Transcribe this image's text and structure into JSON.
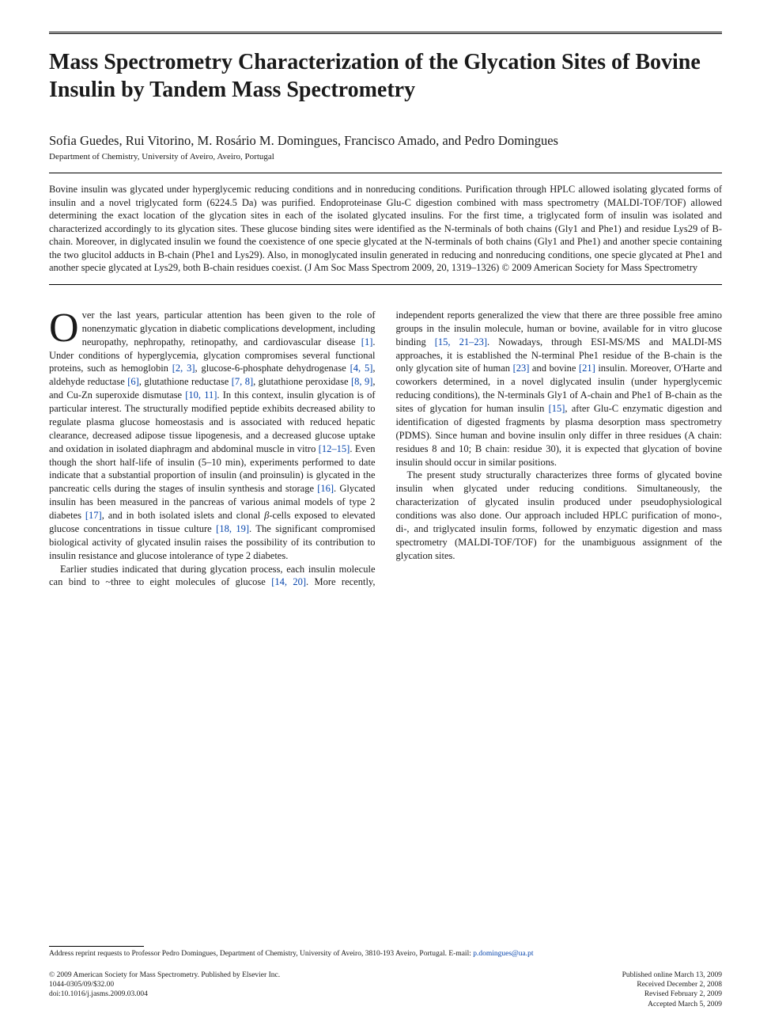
{
  "title": "Mass Spectrometry Characterization of the Glycation Sites of Bovine Insulin by Tandem Mass Spectrometry",
  "authors": "Sofia Guedes, Rui Vitorino, M. Rosário M. Domingues, Francisco Amado, and Pedro Domingues",
  "affiliation": "Department of Chemistry, University of Aveiro, Aveiro, Portugal",
  "abstract": "Bovine insulin was glycated under hyperglycemic reducing conditions and in nonreducing conditions. Purification through HPLC allowed isolating glycated forms of insulin and a novel triglycated form (6224.5 Da) was purified. Endoproteinase Glu-C digestion combined with mass spectrometry (MALDI-TOF/TOF) allowed determining the exact location of the glycation sites in each of the isolated glycated insulins. For the first time, a triglycated form of insulin was isolated and characterized accordingly to its glycation sites. These glucose binding sites were identified as the N-terminals of both chains (Gly1 and Phe1) and residue Lys29 of B-chain. Moreover, in diglycated insulin we found the coexistence of one specie glycated at the N-terminals of both chains (Gly1 and Phe1) and another specie containing the two glucitol adducts in B-chain (Phe1 and Lys29). Also, in monoglycated insulin generated in reducing and nonreducing conditions, one specie glycated at Phe1 and another specie glycated at Lys29, both B-chain residues coexist.   (J Am Soc Mass Spectrom 2009, 20, 1319–1326) © 2009 American Society for Mass Spectrometry",
  "body": {
    "p1_drop": "O",
    "p1": "ver the last years, particular attention has been given to the role of nonenzymatic glycation in diabetic complications development, including neuropathy, nephropathy, retinopathy, and cardiovascular disease [1]. Under conditions of hyperglycemia, glycation compromises several functional proteins, such as hemoglobin [2, 3], glucose-6-phosphate dehydrogenase [4, 5], aldehyde reductase [6], glutathione reductase [7, 8], glutathione peroxidase [8, 9], and Cu-Zn superoxide dismutase [10, 11]. In this context, insulin glycation is of particular interest. The structurally modified peptide exhibits decreased ability to regulate plasma glucose homeostasis and is associated with reduced hepatic clearance, decreased adipose tissue lipogenesis, and a decreased glucose uptake and oxidation in isolated diaphragm and abdominal muscle in vitro [12–15]. Even though the short half-life of insulin (5–10 min), experiments performed to date indicate that a substantial proportion of insulin (and proinsulin) is glycated in the pancreatic cells during the stages of insulin synthesis and storage [16]. Glycated insulin has been measured in the pancreas of various animal models of type 2 diabetes [17], and in both isolated islets and clonal β-cells exposed to elevated glucose concentrations in tissue culture [18, 19]. The significant compromised biological activity of glycated insulin raises the possi",
    "p1b": "bility of its contribution to insulin resistance and glucose intolerance of type 2 diabetes.",
    "p2": "Earlier studies indicated that during glycation process, each insulin molecule can bind to ~three to eight molecules of glucose [14, 20]. More recently, independent reports generalized the view that there are three possible free amino groups in the insulin molecule, human or bovine, available for in vitro glucose binding [15, 21–23]. Nowadays, through ESI-MS/MS and MALDI-MS approaches, it is established the N-terminal Phe1 residue of the B-chain is the only glycation site of human [23] and bovine [21] insulin. Moreover, O'Harte and coworkers determined, in a novel diglycated insulin (under hyperglycemic reducing conditions), the N-terminals Gly1 of A-chain and Phe1 of B-chain as the sites of glycation for human insulin [15], after Glu-C enzymatic digestion and identification of digested fragments by plasma desorption mass spectrometry (PDMS). Since human and bovine insulin only differ in three residues (A chain: residues 8 and 10; B chain: residue 30), it is expected that glycation of bovine insulin should occur in similar positions.",
    "p3": "The present study structurally characterizes three forms of glycated bovine insulin when glycated under reducing conditions. Simultaneously, the characterization of glycated insulin produced under pseudophysiological conditions was also done. Our approach included HPLC purification of mono-, di-, and triglycated insulin forms, followed by enzymatic digestion and mass spectrometry (MALDI-TOF/TOF) for the unambiguous assignment of the glycation sites."
  },
  "footnote": {
    "text": "Address reprint requests to Professor Pedro Domingues, Department of Chemistry, University of Aveiro, 3810-193 Aveiro, Portugal. E-mail: ",
    "email": "p.domingues@ua.pt"
  },
  "footer": {
    "copyright": "© 2009 American Society for Mass Spectrometry. Published by Elsevier Inc.",
    "issn_price": "1044-0305/09/$32.00",
    "doi": "doi:10.1016/j.jasms.2009.03.004",
    "pub_online": "Published online March 13, 2009",
    "received": "Received December 2, 2008",
    "revised": "Revised February 2, 2009",
    "accepted": "Accepted March 5, 2009"
  },
  "refs": {
    "r1": "[1]",
    "r2_3": "[2, 3]",
    "r4_5": "[4, 5]",
    "r6": "[6]",
    "r7_8": "[7, 8]",
    "r8_9": "[8, 9]",
    "r10_11": "[10, 11]",
    "r12_15": "[12–15]",
    "r16": "[16]",
    "r17": "[17]",
    "r18_19": "[18, 19]",
    "r14_20": "[14, 20]",
    "r15_21_23": "[15, 21–23]",
    "r23": "[23]",
    "r21": "[21]",
    "r15": "[15]"
  }
}
